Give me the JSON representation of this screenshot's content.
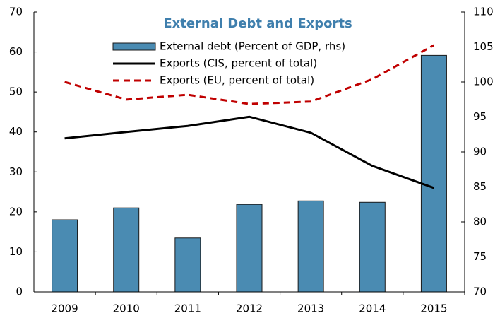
{
  "chart_data": {
    "type": "bar-line",
    "title": "External Debt and Exports",
    "categories": [
      "2009",
      "2010",
      "2011",
      "2012",
      "2013",
      "2014",
      "2015"
    ],
    "series": [
      {
        "name": "External debt (Percent of GDP, rhs)",
        "type": "bar",
        "axis": "y2",
        "color": "#4a8bb2",
        "values": [
          80.3,
          82.0,
          77.7,
          82.5,
          83.0,
          82.8,
          103.8
        ]
      },
      {
        "name": "Exports (CIS, percent of total)",
        "type": "line",
        "color": "#000000",
        "values": [
          38.4,
          40.0,
          41.5,
          43.8,
          39.8,
          31.5,
          26.0
        ]
      },
      {
        "name": "Exports (EU, percent of total)",
        "type": "line",
        "dashed": true,
        "color": "#c00000",
        "values": [
          52.5,
          48.1,
          49.3,
          47.0,
          47.6,
          53.2,
          61.7
        ]
      }
    ],
    "ylim": [
      0,
      70
    ],
    "yticks": [
      0,
      10,
      20,
      30,
      40,
      50,
      60,
      70
    ],
    "y2lim": [
      70,
      110
    ],
    "y2ticks": [
      70,
      75,
      80,
      85,
      90,
      95,
      100,
      105,
      110
    ]
  }
}
